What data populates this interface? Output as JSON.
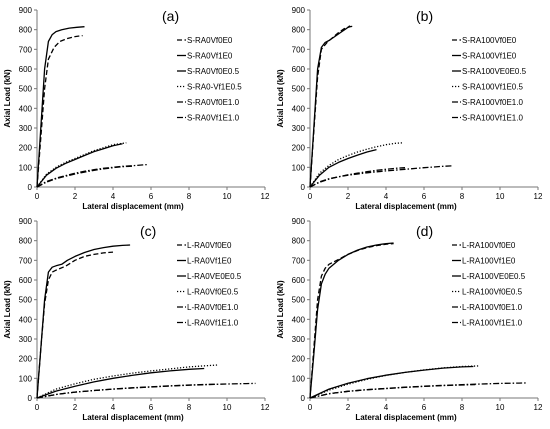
{
  "chart_data": [
    {
      "type": "line",
      "panel_label": "(a)",
      "xlabel": "Lateral displacement (mm)",
      "ylabel": "Axial Load (kN)",
      "xlim": [
        0,
        12
      ],
      "ylim": [
        0,
        900
      ],
      "xticks": [
        "0",
        "2",
        "4",
        "6",
        "8",
        "10",
        "12"
      ],
      "yticks": [
        "0",
        "100",
        "200",
        "300",
        "400",
        "500",
        "600",
        "700",
        "800",
        "900"
      ],
      "grid": false,
      "legend": "right",
      "series": [
        {
          "name": "S-RA0Vf0E0",
          "style": "dash",
          "x": [
            0,
            0.2,
            0.4,
            0.6,
            0.9,
            1.2,
            1.6,
            2.0,
            2.4
          ],
          "y": [
            0,
            250,
            500,
            650,
            710,
            740,
            755,
            765,
            770
          ]
        },
        {
          "name": "S-RA0Vf1E0",
          "style": "solid",
          "x": [
            0,
            0.2,
            0.4,
            0.6,
            0.8,
            1.0,
            1.3,
            1.7,
            2.1,
            2.5
          ],
          "y": [
            0,
            300,
            600,
            740,
            775,
            790,
            800,
            808,
            812,
            815
          ]
        },
        {
          "name": "S-RA0Vf0E0.5",
          "style": "solid",
          "x": [
            0,
            0.5,
            1.0,
            1.5,
            2.0,
            2.5,
            3.0,
            3.5,
            4.0,
            4.5
          ],
          "y": [
            0,
            60,
            95,
            120,
            140,
            160,
            180,
            195,
            210,
            220
          ]
        },
        {
          "name": "S-RA0-Vf1E0.5",
          "style": "dot",
          "x": [
            0,
            0.5,
            1.0,
            1.5,
            2.0,
            2.5,
            3.0,
            3.5,
            4.0,
            4.7
          ],
          "y": [
            0,
            65,
            100,
            125,
            145,
            165,
            185,
            200,
            215,
            225
          ]
        },
        {
          "name": "S-RA0Vf0E1.0",
          "style": "dashdot",
          "x": [
            0,
            0.5,
            1.0,
            1.5,
            2.0,
            2.5,
            3.0,
            3.5,
            4.0,
            4.5,
            5.0
          ],
          "y": [
            0,
            25,
            42,
            55,
            66,
            76,
            85,
            92,
            98,
            103,
            106
          ]
        },
        {
          "name": "S-RA0Vf1E1.0",
          "style": "dashdot",
          "x": [
            0,
            0.5,
            1.0,
            1.5,
            2.0,
            2.5,
            3.0,
            3.5,
            4.0,
            4.5,
            5.0,
            5.5,
            5.8
          ],
          "y": [
            0,
            28,
            45,
            58,
            70,
            80,
            88,
            95,
            100,
            105,
            108,
            112,
            114
          ]
        }
      ]
    },
    {
      "type": "line",
      "panel_label": "(b)",
      "xlabel": "Lateral displacement (mm)",
      "ylabel": "Axial Load (kN)",
      "xlim": [
        0,
        12
      ],
      "ylim": [
        0,
        900
      ],
      "xticks": [
        "0",
        "2",
        "4",
        "6",
        "8",
        "10",
        "12"
      ],
      "yticks": [
        "0",
        "100",
        "200",
        "300",
        "400",
        "500",
        "600",
        "700",
        "800",
        "900"
      ],
      "grid": false,
      "legend": "right",
      "series": [
        {
          "name": "S-RA100Vf0E0",
          "style": "dash",
          "x": [
            0,
            0.2,
            0.4,
            0.6,
            0.9,
            1.2,
            1.5,
            1.8,
            2.1,
            2.3
          ],
          "y": [
            0,
            280,
            560,
            700,
            735,
            760,
            785,
            805,
            815,
            818
          ]
        },
        {
          "name": "S-RA100Vf1E0",
          "style": "solid",
          "x": [
            0,
            0.2,
            0.4,
            0.6,
            0.8,
            1.0,
            1.3,
            1.6,
            1.9,
            2.1
          ],
          "y": [
            0,
            300,
            600,
            710,
            735,
            745,
            765,
            785,
            805,
            820
          ]
        },
        {
          "name": "S-RA100VE0E0.5",
          "style": "solid",
          "x": [
            0,
            0.5,
            1.0,
            1.5,
            2.0,
            2.5,
            3.0,
            3.5
          ],
          "y": [
            0,
            60,
            100,
            125,
            145,
            162,
            178,
            190
          ]
        },
        {
          "name": "S-RA100Vf1E0.5",
          "style": "dot",
          "x": [
            0,
            0.5,
            1.0,
            1.5,
            2.0,
            2.5,
            3.0,
            3.5,
            4.0,
            4.5,
            4.9
          ],
          "y": [
            0,
            70,
            110,
            140,
            160,
            178,
            192,
            205,
            215,
            222,
            225
          ]
        },
        {
          "name": "S-RA100Vf0E1.0",
          "style": "dashdot",
          "x": [
            0,
            0.5,
            1.0,
            1.5,
            2.0,
            2.5,
            3.0,
            3.5,
            4.0,
            4.5,
            5.0
          ],
          "y": [
            0,
            24,
            40,
            52,
            62,
            70,
            78,
            85,
            90,
            95,
            98
          ]
        },
        {
          "name": "S-RA100Vf1E1.0",
          "style": "dashdot",
          "x": [
            0,
            0.5,
            1.0,
            1.5,
            2.0,
            3.0,
            4.0,
            5.0,
            6.0,
            7.0,
            7.5
          ],
          "y": [
            0,
            26,
            42,
            52,
            60,
            72,
            82,
            90,
            98,
            105,
            108
          ]
        }
      ]
    },
    {
      "type": "line",
      "panel_label": "(c)",
      "xlabel": "Lateral displacement (mm)",
      "ylabel": "Axial Load (kN)",
      "xlim": [
        0,
        12
      ],
      "ylim": [
        0,
        900
      ],
      "xticks": [
        "0",
        "2",
        "4",
        "6",
        "8",
        "10",
        "12"
      ],
      "yticks": [
        "0",
        "100",
        "200",
        "300",
        "400",
        "500",
        "600",
        "700",
        "800",
        "900"
      ],
      "grid": false,
      "legend": "right",
      "series": [
        {
          "name": "L-RA0Vf0E0",
          "style": "dash",
          "x": [
            0,
            0.2,
            0.4,
            0.6,
            0.8,
            1.0,
            1.5,
            2.0,
            2.5,
            3.0,
            3.5,
            4.0
          ],
          "y": [
            0,
            250,
            480,
            600,
            640,
            650,
            670,
            700,
            720,
            730,
            738,
            742
          ]
        },
        {
          "name": "L-RA0Vf1E0",
          "style": "solid",
          "x": [
            0,
            0.2,
            0.4,
            0.6,
            0.8,
            1.0,
            1.3,
            1.6,
            2.0,
            2.5,
            3.0,
            3.5,
            4.0,
            4.5,
            4.9
          ],
          "y": [
            0,
            250,
            500,
            640,
            665,
            672,
            680,
            700,
            720,
            740,
            755,
            765,
            772,
            776,
            778
          ]
        },
        {
          "name": "L-RA0VE0E0.5",
          "style": "solid",
          "x": [
            0,
            1.0,
            2.0,
            3.0,
            4.0,
            5.0,
            6.0,
            7.0,
            8.0,
            8.8
          ],
          "y": [
            0,
            35,
            60,
            82,
            100,
            115,
            128,
            138,
            146,
            150
          ]
        },
        {
          "name": "L-RA0Vf0E0.5",
          "style": "dot",
          "x": [
            0,
            1.0,
            2.0,
            3.0,
            4.0,
            5.0,
            6.0,
            7.0,
            8.0,
            9.0,
            9.5
          ],
          "y": [
            0,
            45,
            72,
            95,
            112,
            126,
            138,
            148,
            158,
            165,
            168
          ]
        },
        {
          "name": "L-RA0Vf0E1.0",
          "style": "dashdot",
          "x": [
            0,
            1.0,
            2.0,
            3.0,
            4.0,
            5.0,
            6.0,
            7.0,
            8.0,
            9.0,
            9.5
          ],
          "y": [
            0,
            18,
            30,
            38,
            45,
            52,
            57,
            62,
            66,
            69,
            70
          ]
        },
        {
          "name": "L-RA0Vf1E1.0",
          "style": "dashdot",
          "x": [
            0,
            1.0,
            2.0,
            3.0,
            4.0,
            5.0,
            6.0,
            7.0,
            8.0,
            9.0,
            10.0,
            11.0,
            11.5
          ],
          "y": [
            0,
            18,
            30,
            38,
            45,
            51,
            56,
            61,
            65,
            68,
            71,
            73,
            74
          ]
        }
      ]
    },
    {
      "type": "line",
      "panel_label": "(d)",
      "xlabel": "Lateral displacement (mm)",
      "ylabel": "Axial Load (kN)",
      "xlim": [
        0,
        12
      ],
      "ylim": [
        0,
        900
      ],
      "xticks": [
        "0",
        "2",
        "4",
        "6",
        "8",
        "10",
        "12"
      ],
      "yticks": [
        "0",
        "100",
        "200",
        "300",
        "400",
        "500",
        "600",
        "700",
        "800",
        "900"
      ],
      "grid": false,
      "legend": "right",
      "series": [
        {
          "name": "L-RA100Vf0E0",
          "style": "dash",
          "x": [
            0,
            0.2,
            0.4,
            0.6,
            0.8,
            1.0,
            1.5,
            2.0,
            2.5,
            3.0,
            3.5,
            4.0,
            4.4
          ],
          "y": [
            0,
            250,
            500,
            620,
            660,
            680,
            705,
            730,
            750,
            765,
            775,
            782,
            785
          ]
        },
        {
          "name": "L-RA100Vf1E0",
          "style": "solid",
          "x": [
            0,
            0.2,
            0.4,
            0.6,
            0.8,
            1.0,
            1.5,
            2.0,
            2.5,
            3.0,
            3.5,
            4.0,
            4.4
          ],
          "y": [
            0,
            220,
            450,
            580,
            630,
            660,
            700,
            730,
            752,
            768,
            778,
            785,
            788
          ]
        },
        {
          "name": "L-RA100VE0E0.5",
          "style": "solid",
          "x": [
            0,
            1.0,
            2.0,
            3.0,
            4.0,
            5.0,
            6.0,
            7.0,
            8.0,
            8.6
          ],
          "y": [
            0,
            45,
            75,
            98,
            116,
            130,
            142,
            152,
            158,
            160
          ]
        },
        {
          "name": "L-RA100Vf0E0.5",
          "style": "dot",
          "x": [
            0,
            1.0,
            2.0,
            3.0,
            4.0,
            5.0,
            6.0,
            7.0,
            8.0,
            8.9
          ],
          "y": [
            0,
            40,
            70,
            95,
            115,
            130,
            143,
            153,
            160,
            163
          ]
        },
        {
          "name": "L-RA100Vf0E1.0",
          "style": "dashdot",
          "x": [
            0,
            1.0,
            2.0,
            3.0,
            4.0,
            5.0,
            6.0,
            7.0,
            8.0,
            8.7
          ],
          "y": [
            0,
            22,
            34,
            42,
            48,
            54,
            59,
            63,
            66,
            68
          ]
        },
        {
          "name": "L-RA100Vf1E1.0",
          "style": "dashdot",
          "x": [
            0,
            1.0,
            2.0,
            3.0,
            4.0,
            5.0,
            6.0,
            7.0,
            8.0,
            9.0,
            10.0,
            11.0,
            11.4
          ],
          "y": [
            0,
            22,
            34,
            42,
            49,
            55,
            60,
            64,
            68,
            71,
            74,
            76,
            77
          ]
        }
      ]
    }
  ]
}
